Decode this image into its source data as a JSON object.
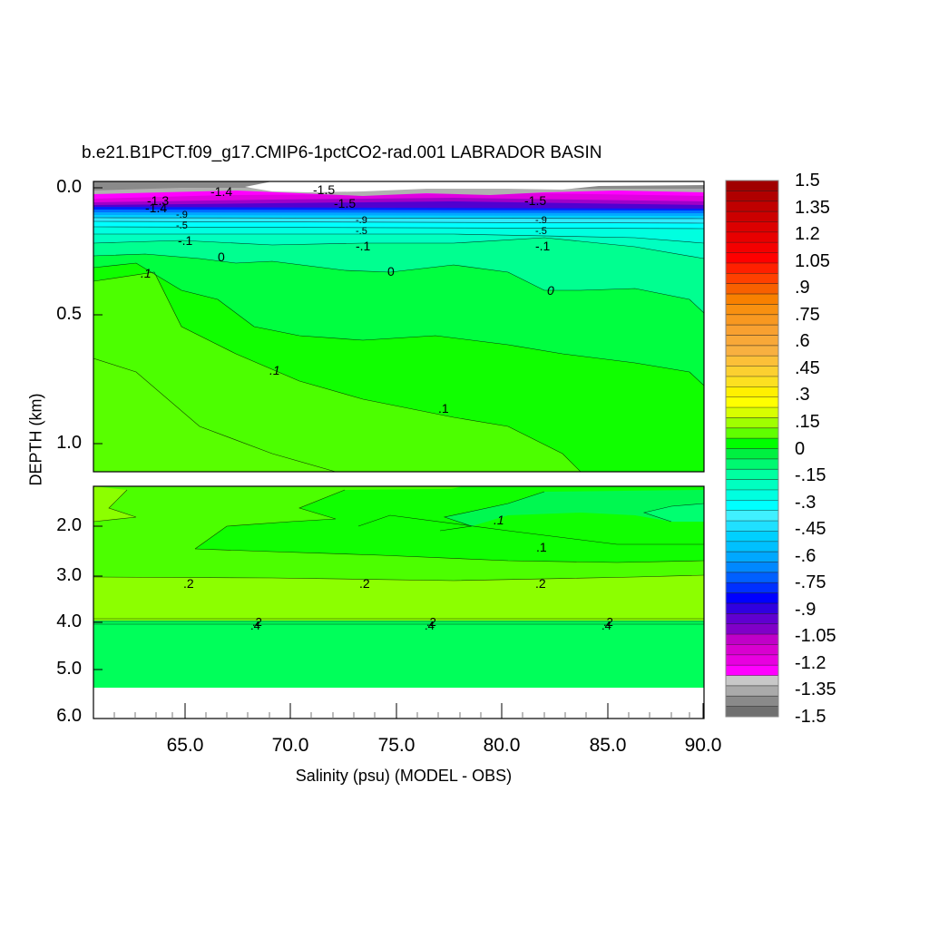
{
  "title": "b.e21.B1PCT.f09_g17.CMIP6-1pctCO2-rad.001 LABRADOR BASIN",
  "chart_data": {
    "type": "heatmap",
    "subtype": "filled-contour depth section",
    "title": "b.e21.B1PCT.f09_g17.CMIP6-1pctCO2-rad.001 LABRADOR BASIN",
    "xlabel": "Salinity (psu) (MODEL - OBS)",
    "ylabel": "DEPTH (km)",
    "x_ticks": [
      "65.0",
      "70.0",
      "75.0",
      "80.0",
      "85.0",
      "90.0"
    ],
    "xlim": [
      60.6,
      90.4
    ],
    "panels": [
      {
        "name": "upper",
        "y_ticks": [
          "0.0",
          "0.5",
          "1.0"
        ],
        "ylim": [
          0.0,
          1.1
        ]
      },
      {
        "name": "lower",
        "y_ticks": [
          "2.0",
          "3.0",
          "4.0",
          "5.0",
          "6.0"
        ],
        "ylim": [
          1.1,
          6.0
        ]
      }
    ],
    "colorbar": {
      "min": -1.5,
      "max": 1.5,
      "interval": 0.075,
      "labels": [
        "1.5",
        "1.35",
        "1.2",
        "1.05",
        ".9",
        ".75",
        ".6",
        ".45",
        ".3",
        ".15",
        "0",
        "-.15",
        "-.3",
        "-.45",
        "-.6",
        "-.75",
        "-.9",
        "-1.05",
        "-1.2",
        "-1.35",
        "-1.5"
      ]
    },
    "contour_labels_visible": [
      {
        "value": "-1.5",
        "region": "surface, x~72"
      },
      {
        "value": "-1.4",
        "region": "surface, x~67"
      },
      {
        "value": "-1.3",
        "region": "surface, x~64"
      },
      {
        "value": "-.1",
        "region": "~0.2 km"
      },
      {
        "value": "0",
        "region": "~0.25-0.4 km"
      },
      {
        "value": ".1",
        "region": "0.3-0.9 km"
      },
      {
        "value": ".1",
        "region": "~2.0 km"
      },
      {
        "value": ".2",
        "region": "~3.0 km"
      },
      {
        "value": ".2",
        "region": "~4.0 km"
      },
      {
        "value": ".4",
        "region": "~4.0 km"
      }
    ],
    "summary": {
      "surface_0_to_0.1km": "strongly negative (-1.5 to -0.9), white where below -1.5",
      "0.1_to_0.3km": "negative (-0.9 to 0)",
      "0.3_to_1.1km": "slightly positive (0 to 0.2)",
      "1.5_to_3km": "~0.1 to 0.2",
      "3_to_4km": "~0.2 to 0.25",
      "4_to_5.3km": "~0.05",
      "below_5.3km": "no data"
    }
  },
  "colorbar_colors": [
    "#a00000",
    "#b00000",
    "#c00000",
    "#cc0000",
    "#dc0000",
    "#e80000",
    "#f40000",
    "#ff0000",
    "#ff2000",
    "#ff4000",
    "#f86000",
    "#f88000",
    "#f89010",
    "#f89820",
    "#f8a030",
    "#f8a838",
    "#f8b040",
    "#fcc038",
    "#fcd030",
    "#fce020",
    "#fff000",
    "#ffff00",
    "#d8ff00",
    "#a0ff00",
    "#60ff00",
    "#00ff00",
    "#00f040",
    "#00f870",
    "#00ffa0",
    "#00ffc0",
    "#00ffe0",
    "#00ffff",
    "#40f0ff",
    "#20e0ff",
    "#00d0ff",
    "#00c0ff",
    "#00a8ff",
    "#0088ff",
    "#0060ff",
    "#0030ff",
    "#0000ff",
    "#3000e0",
    "#6000d0",
    "#8000c8",
    "#c000c8",
    "#d800d0",
    "#e800e0",
    "#ff00ff",
    "#c8c8c8",
    "#aaaaaa",
    "#8a8a8a",
    "#707070"
  ]
}
